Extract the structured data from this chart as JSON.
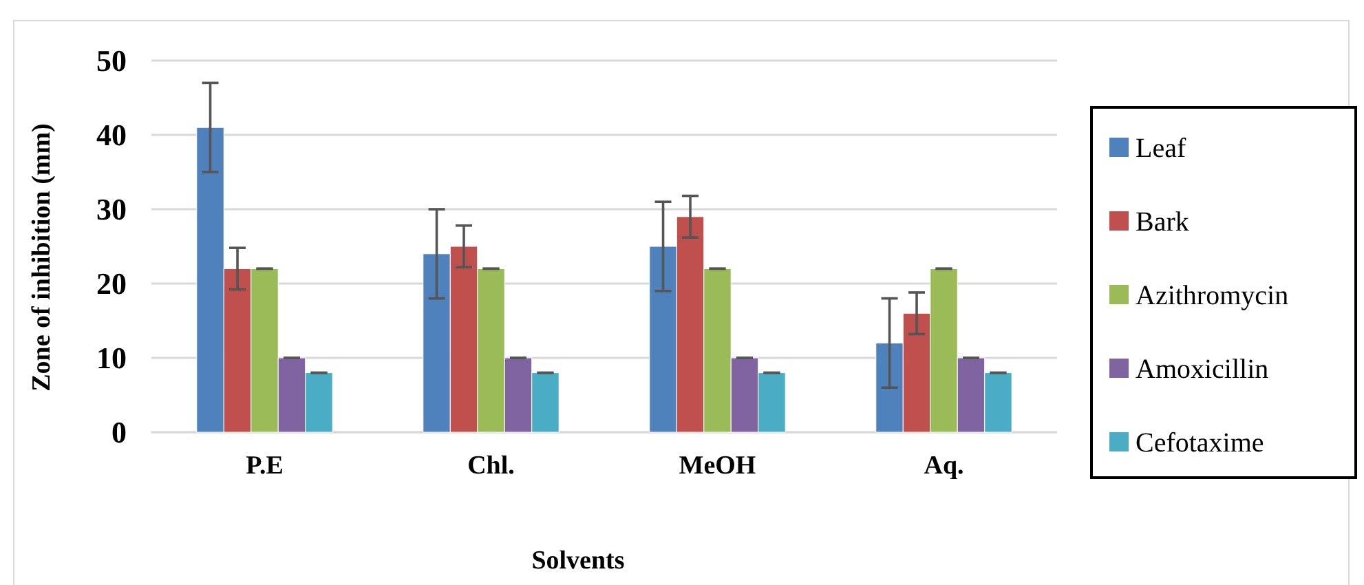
{
  "chart_data": {
    "type": "bar",
    "xlabel": "Solvents",
    "ylabel": "Zone of inhibition (mm)",
    "categories": [
      "P.E",
      "Chl.",
      "MeOH",
      "Aq."
    ],
    "series": [
      {
        "name": "Leaf",
        "color": "#4f81bd",
        "values": [
          41,
          24,
          25,
          12
        ],
        "errors": [
          6,
          6,
          6,
          6
        ]
      },
      {
        "name": "Bark",
        "color": "#c0504d",
        "values": [
          22,
          25,
          29,
          16
        ],
        "errors": [
          2.8,
          2.8,
          2.8,
          2.8
        ]
      },
      {
        "name": "Azithromycin",
        "color": "#9bbb59",
        "values": [
          22,
          22,
          22,
          22
        ],
        "errors": [
          0,
          0,
          0,
          0
        ]
      },
      {
        "name": "Amoxicillin",
        "color": "#8064a2",
        "values": [
          10,
          10,
          10,
          10
        ],
        "errors": [
          0,
          0,
          0,
          0
        ]
      },
      {
        "name": "Cefotaxime",
        "color": "#4bacc6",
        "values": [
          8,
          8,
          8,
          8
        ],
        "errors": [
          0,
          0,
          0,
          0
        ]
      }
    ],
    "ylim": [
      0,
      50
    ],
    "yticks": [
      0,
      10,
      20,
      30,
      40,
      50
    ],
    "grid": "y",
    "legend": "right"
  }
}
